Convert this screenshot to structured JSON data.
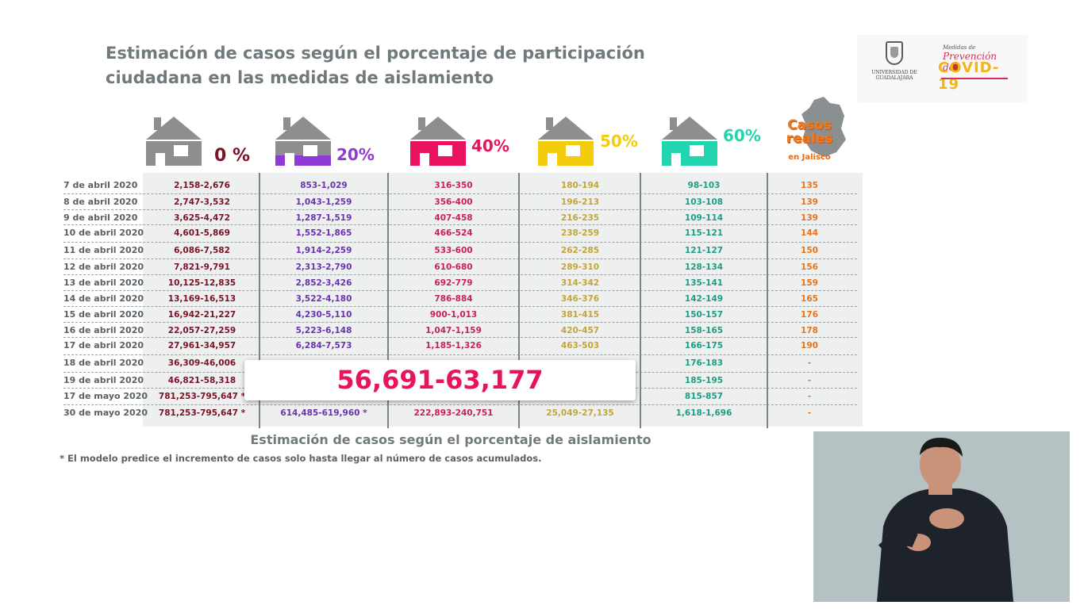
{
  "title": {
    "line1": "Estimación de casos según el porcentaje de participación",
    "line2": "ciudadana en las medidas de aislamiento"
  },
  "logos": {
    "udg_line1": "UNIVERSIDAD DE",
    "udg_line2": "GUADALAJARA",
    "covid_small": "Medidas de",
    "covid_prev": "Prevención del",
    "covid_main": "COVID-19"
  },
  "columns": [
    {
      "label": "0",
      "suffix": " %",
      "color": "#7a1226",
      "house_color": "#8e8e8e"
    },
    {
      "label": "20",
      "suffix": "%",
      "color": "#8e3ad6",
      "house_color": "#8e8e8e"
    },
    {
      "label": "40",
      "suffix": "%",
      "color": "#e8125f",
      "house_color": "#e8125f"
    },
    {
      "label": "50",
      "suffix": "%",
      "color": "#f3cc0b",
      "house_color": "#f3cc0b"
    },
    {
      "label": "60",
      "suffix": "%",
      "color": "#22d5ae",
      "house_color": "#22d5ae"
    }
  ],
  "casos_reales": {
    "line1": "Casos",
    "line2": "reales",
    "line3": "en Jalisco",
    "color": "#f07a1a"
  },
  "rows": [
    {
      "date": "7 de abril 2020",
      "c0": "2,158-2,676",
      "c20": "853-1,029",
      "c40": "316-350",
      "c50": "180-194",
      "c60": "98-103",
      "cr": "135"
    },
    {
      "date": "8 de abril 2020",
      "c0": "2,747-3,532",
      "c20": "1,043-1,259",
      "c40": "356-400",
      "c50": "196-213",
      "c60": "103-108",
      "cr": "139"
    },
    {
      "date": "9 de abril 2020",
      "c0": "3,625-4,472",
      "c20": "1,287-1,519",
      "c40": "407-458",
      "c50": "216-235",
      "c60": "109-114",
      "cr": "139"
    },
    {
      "date": "10 de abril 2020",
      "c0": "4,601-5,869",
      "c20": "1,552-1,865",
      "c40": "466-524",
      "c50": "238-259",
      "c60": "115-121",
      "cr": "144"
    },
    {
      "date": "11 de abril 2020",
      "c0": "6,086-7,582",
      "c20": "1,914-2,259",
      "c40": "533-600",
      "c50": "262-285",
      "c60": "121-127",
      "cr": "150"
    },
    {
      "date": "12 de abril 2020",
      "c0": "7,821-9,791",
      "c20": "2,313-2,790",
      "c40": "610-680",
      "c50": "289-310",
      "c60": "128-134",
      "cr": "156"
    },
    {
      "date": "13 de abril 2020",
      "c0": "10,125-12,835",
      "c20": "2,852-3,426",
      "c40": "692-779",
      "c50": "314-342",
      "c60": "135-141",
      "cr": "159"
    },
    {
      "date": "14 de abril 2020",
      "c0": "13,169-16,513",
      "c20": "3,522-4,180",
      "c40": "786-884",
      "c50": "346-376",
      "c60": "142-149",
      "cr": "165"
    },
    {
      "date": "15 de abril 2020",
      "c0": "16,942-21,227",
      "c20": "4,230-5,110",
      "c40": "900-1,013",
      "c50": "381-415",
      "c60": "150-157",
      "cr": "176"
    },
    {
      "date": "16 de abril 2020",
      "c0": "22,057-27,259",
      "c20": "5,223-6,148",
      "c40": "1,047-1,159",
      "c50": "420-457",
      "c60": "158-165",
      "cr": "178"
    },
    {
      "date": "17 de abril 2020",
      "c0": "27,961-34,957",
      "c20": "6,284-7,573",
      "c40": "1,185-1,326",
      "c50": "463-503",
      "c60": "166-175",
      "cr": "190"
    },
    {
      "date": "18 de abril 2020",
      "c0": "36,309-46,006",
      "c20": "",
      "c40": "",
      "c50": "",
      "c60": "176-183",
      "cr": "-"
    },
    {
      "date": "19 de abril 2020",
      "c0": "46,821-58,318",
      "c20": "",
      "c40": "",
      "c50": "",
      "c60": "185-195",
      "cr": "-"
    },
    {
      "date": "17 de mayo 2020",
      "c0": "781,253-795,647 *",
      "c20": "",
      "c40": "",
      "c50": "",
      "c60": "815-857",
      "cr": "-"
    },
    {
      "date": "30 de mayo 2020",
      "c0": "781,253-795,647 *",
      "c20": "614,485-619,960 *",
      "c40": "222,893-240,751",
      "c50": "25,049-27,135",
      "c60": "1,618-1,696",
      "cr": "-"
    }
  ],
  "highlight": "56,691-63,177",
  "caption": "Estimación de casos según el porcentaje de aislamiento",
  "footnote": "* El modelo predice el incremento de casos solo hasta llegar al número de casos acumulados."
}
